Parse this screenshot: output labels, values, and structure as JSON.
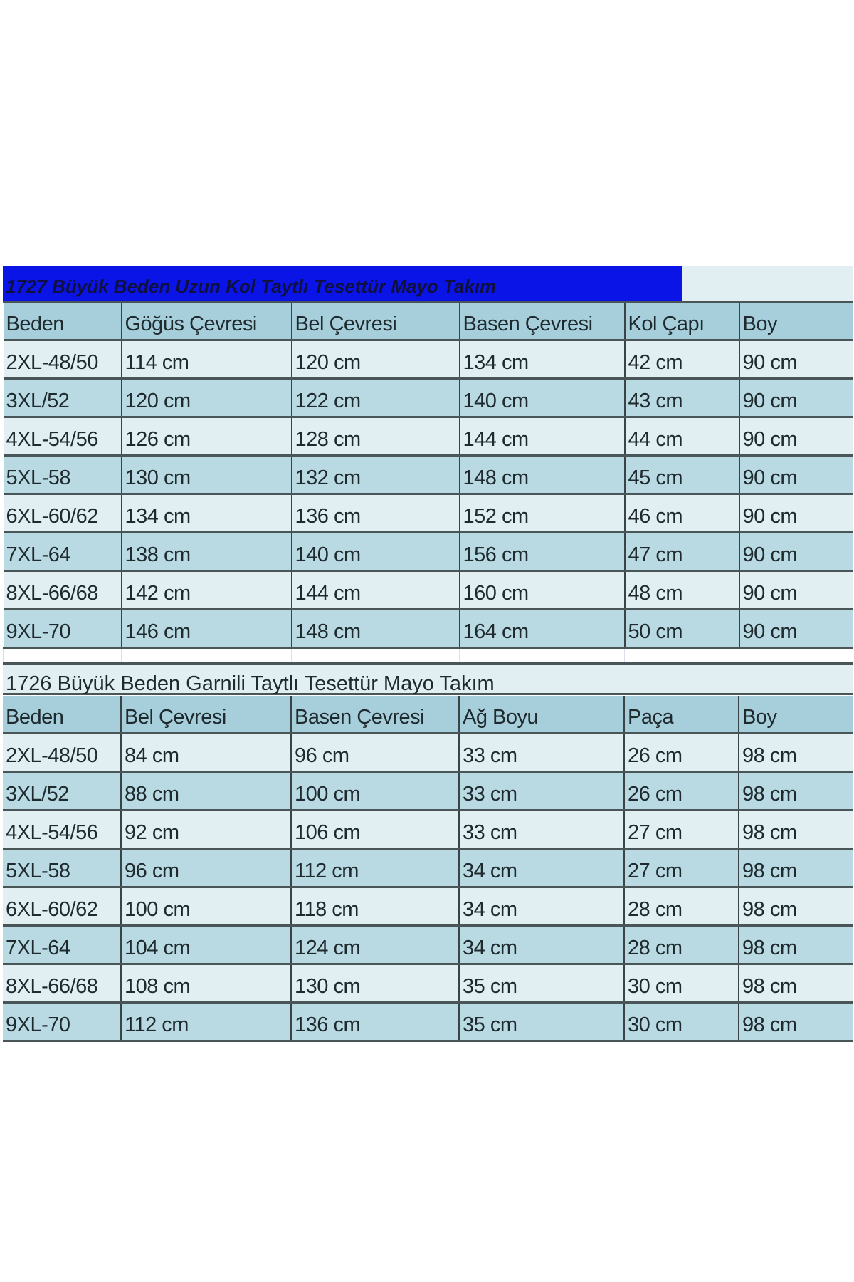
{
  "table1": {
    "title": "1727 Büyük Beden Uzun Kol Taytlı Tesettür Mayo Takım",
    "title_bg": "#0a14e6",
    "headers": [
      "Beden",
      "Göğüs Çevresi",
      "Bel Çevresi",
      "Basen Çevresi",
      "Kol Çapı",
      "Boy"
    ],
    "rows": [
      [
        "2XL-48/50",
        "114 cm",
        "120 cm",
        "134 cm",
        "42 cm",
        "90 cm"
      ],
      [
        "3XL/52",
        "120 cm",
        "122 cm",
        "140 cm",
        "43 cm",
        "90 cm"
      ],
      [
        "4XL-54/56",
        "126 cm",
        "128 cm",
        "144 cm",
        "44 cm",
        "90 cm"
      ],
      [
        "5XL-58",
        "130 cm",
        "132 cm",
        "148 cm",
        "45 cm",
        "90 cm"
      ],
      [
        "6XL-60/62",
        "134 cm",
        "136 cm",
        "152 cm",
        "46 cm",
        "90 cm"
      ],
      [
        "7XL-64",
        "138 cm",
        "140 cm",
        "156 cm",
        "47 cm",
        "90 cm"
      ],
      [
        "8XL-66/68",
        "142 cm",
        "144 cm",
        "160 cm",
        "48 cm",
        "90 cm"
      ],
      [
        "9XL-70",
        "146 cm",
        "148 cm",
        "164 cm",
        "50 cm",
        "90 cm"
      ]
    ]
  },
  "table2": {
    "title": "1726 Büyük Beden Garnili Taytlı Tesettür Mayo Takım",
    "headers": [
      "Beden",
      "Bel Çevresi",
      "Basen Çevresi",
      "Ağ Boyu",
      "Paça",
      "Boy"
    ],
    "rows": [
      [
        "2XL-48/50",
        "84 cm",
        "96 cm",
        "33 cm",
        "26 cm",
        "98 cm"
      ],
      [
        "3XL/52",
        "88 cm",
        "100 cm",
        "33 cm",
        "26 cm",
        "98 cm"
      ],
      [
        "4XL-54/56",
        "92 cm",
        "106 cm",
        "33 cm",
        "27 cm",
        "98 cm"
      ],
      [
        "5XL-58",
        "96 cm",
        "112 cm",
        "34 cm",
        "27 cm",
        "98 cm"
      ],
      [
        "6XL-60/62",
        "100 cm",
        "118 cm",
        "34 cm",
        "28 cm",
        "98 cm"
      ],
      [
        "7XL-64",
        "104 cm",
        "124 cm",
        "34 cm",
        "28 cm",
        "98 cm"
      ],
      [
        "8XL-66/68",
        "108 cm",
        "130 cm",
        "35 cm",
        "30 cm",
        "98 cm"
      ],
      [
        "9XL-70",
        "112 cm",
        "136 cm",
        "35 cm",
        "30 cm",
        "98 cm"
      ]
    ]
  }
}
